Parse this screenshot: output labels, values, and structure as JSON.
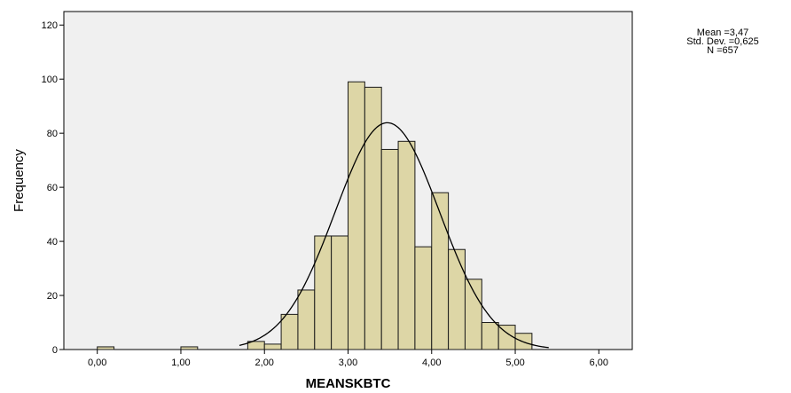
{
  "chart_data": {
    "type": "bar",
    "subtype": "histogram",
    "xlabel": "MEANSKBTC",
    "ylabel": "Frequency",
    "xlim": [
      -0.4,
      6.4
    ],
    "ylim": [
      0,
      125
    ],
    "bin_width": 0.2,
    "x_ticks": [
      {
        "value": 0,
        "label": "0,00"
      },
      {
        "value": 1,
        "label": "1,00"
      },
      {
        "value": 2,
        "label": "2,00"
      },
      {
        "value": 3,
        "label": "3,00"
      },
      {
        "value": 4,
        "label": "4,00"
      },
      {
        "value": 5,
        "label": "5,00"
      },
      {
        "value": 6,
        "label": "6,00"
      }
    ],
    "y_ticks": [
      {
        "value": 0,
        "label": "0"
      },
      {
        "value": 20,
        "label": "20"
      },
      {
        "value": 40,
        "label": "40"
      },
      {
        "value": 60,
        "label": "60"
      },
      {
        "value": 80,
        "label": "80"
      },
      {
        "value": 100,
        "label": "100"
      },
      {
        "value": 120,
        "label": "120"
      }
    ],
    "bins": [
      {
        "x0": 0.0,
        "count": 1
      },
      {
        "x0": 1.0,
        "count": 1
      },
      {
        "x0": 1.8,
        "count": 3
      },
      {
        "x0": 2.0,
        "count": 2
      },
      {
        "x0": 2.2,
        "count": 13
      },
      {
        "x0": 2.4,
        "count": 22
      },
      {
        "x0": 2.6,
        "count": 42
      },
      {
        "x0": 2.8,
        "count": 42
      },
      {
        "x0": 3.0,
        "count": 99
      },
      {
        "x0": 3.2,
        "count": 97
      },
      {
        "x0": 3.4,
        "count": 74
      },
      {
        "x0": 3.6,
        "count": 77
      },
      {
        "x0": 3.8,
        "count": 38
      },
      {
        "x0": 4.0,
        "count": 58
      },
      {
        "x0": 4.2,
        "count": 37
      },
      {
        "x0": 4.4,
        "count": 26
      },
      {
        "x0": 4.6,
        "count": 10
      },
      {
        "x0": 4.8,
        "count": 9
      },
      {
        "x0": 5.0,
        "count": 6
      }
    ],
    "normal_curve": {
      "mean": 3.47,
      "std_dev": 0.625,
      "n": 657
    },
    "stats_text": [
      "Mean =3,47",
      "Std. Dev. =0,625",
      "N =657"
    ],
    "colors": {
      "bar_fill": "#ddd6a6",
      "bar_stroke": "#1a1a1a",
      "plot_bg": "#f0f0f0",
      "curve": "#000000"
    },
    "grid": false
  }
}
